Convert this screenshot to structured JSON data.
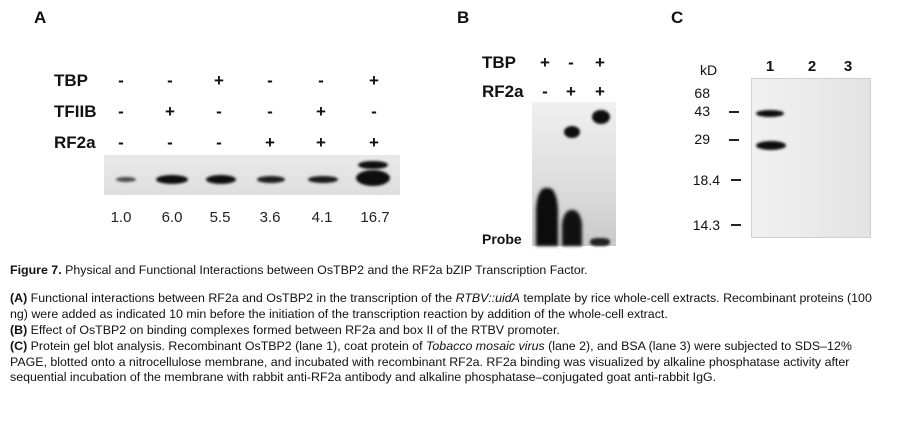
{
  "panel_a": {
    "letter": "A",
    "row_labels": [
      "TBP",
      "TFIIB",
      "RF2a"
    ],
    "rows": [
      [
        "-",
        "-",
        "+",
        "-",
        "-",
        "+"
      ],
      [
        "-",
        "+",
        "-",
        "-",
        "+",
        "-"
      ],
      [
        "-",
        "-",
        "-",
        "+",
        "+",
        "+"
      ]
    ],
    "quantification": [
      "1.0",
      "6.0",
      "5.5",
      "3.6",
      "4.1",
      "16.7"
    ]
  },
  "panel_b": {
    "letter": "B",
    "row_labels": [
      "TBP",
      "RF2a"
    ],
    "rows": [
      [
        "+",
        "-",
        "+"
      ],
      [
        "-",
        "+",
        "+"
      ]
    ],
    "probe_label": "Probe"
  },
  "panel_c": {
    "letter": "C",
    "unit_label": "kD",
    "lane_numbers": [
      "1",
      "2",
      "3"
    ],
    "markers": [
      "68",
      "43",
      "29",
      "18.4",
      "14.3"
    ]
  },
  "caption": {
    "title_prefix": "Figure 7.",
    "title_text": "Physical and Functional Interactions between OsTBP2 and the RF2a bZIP Transcription Factor.",
    "a_label": "(A)",
    "a_text_1": "Functional interactions between RF2a and OsTBP2 in the transcription of the ",
    "a_italic": "RTBV::uidA",
    "a_text_2": " template by rice whole-cell extracts. Recombinant proteins (100 ng) were added as indicated 10 min before the initiation of the transcription reaction by addition of the whole-cell extract.",
    "b_label": "(B)",
    "b_text": "Effect of OsTBP2 on binding complexes formed between RF2a and box II of the RTBV promoter.",
    "c_label": "(C)",
    "c_text_1": "Protein gel blot analysis. Recombinant OsTBP2 (lane 1), coat protein of ",
    "c_italic": "Tobacco mosaic virus",
    "c_text_2": " (lane 2), and BSA (lane 3) were subjected to SDS–12% PAGE, blotted onto a nitrocellulose membrane, and incubated with recombinant RF2a. RF2a binding was visualized by alkaline phosphatase activity after sequential incubation of the membrane with rabbit anti-RF2a antibody and alkaline phosphatase–conjugated goat anti-rabbit IgG."
  }
}
